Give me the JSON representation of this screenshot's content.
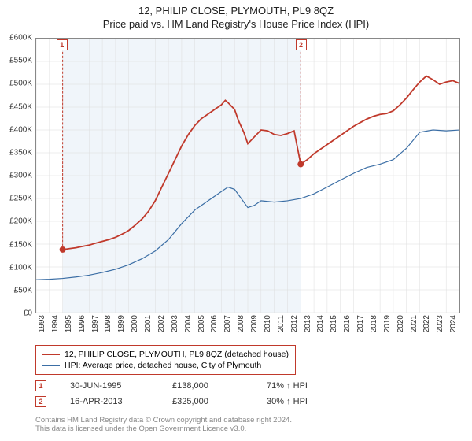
{
  "title": "12, PHILIP CLOSE, PLYMOUTH, PL9 8QZ",
  "subtitle": "Price paid vs. HM Land Registry's House Price Index (HPI)",
  "chart": {
    "type": "line",
    "background_color": "#ffffff",
    "grid_color": "#dddddd",
    "highlight_band_color": "#f0f5fa",
    "border_color": "#888888",
    "ylim": [
      0,
      600000
    ],
    "ytick_step": 50000,
    "ytick_labels": [
      "£0",
      "£50K",
      "£100K",
      "£150K",
      "£200K",
      "£250K",
      "£300K",
      "£350K",
      "£400K",
      "£450K",
      "£500K",
      "£550K",
      "£600K"
    ],
    "xlim": [
      1993,
      2025
    ],
    "xtick_labels": [
      "1993",
      "1994",
      "1995",
      "1996",
      "1997",
      "1998",
      "1999",
      "2000",
      "2001",
      "2002",
      "2003",
      "2004",
      "2005",
      "2006",
      "2007",
      "2008",
      "2009",
      "2010",
      "2011",
      "2012",
      "2013",
      "2014",
      "2015",
      "2016",
      "2017",
      "2018",
      "2019",
      "2020",
      "2021",
      "2022",
      "2023",
      "2024"
    ],
    "highlight_band_x": [
      1995,
      2013
    ],
    "series": [
      {
        "name": "12, PHILIP CLOSE, PLYMOUTH, PL9 8QZ (detached house)",
        "color": "#c0392b",
        "line_width": 1.8,
        "data": [
          [
            1995.0,
            138000
          ],
          [
            1995.5,
            140000
          ],
          [
            1996.0,
            142000
          ],
          [
            1996.5,
            145000
          ],
          [
            1997.0,
            148000
          ],
          [
            1997.5,
            152000
          ],
          [
            1998.0,
            156000
          ],
          [
            1998.5,
            160000
          ],
          [
            1999.0,
            165000
          ],
          [
            1999.5,
            172000
          ],
          [
            2000.0,
            180000
          ],
          [
            2000.5,
            192000
          ],
          [
            2001.0,
            205000
          ],
          [
            2001.5,
            222000
          ],
          [
            2002.0,
            245000
          ],
          [
            2002.5,
            275000
          ],
          [
            2003.0,
            305000
          ],
          [
            2003.5,
            335000
          ],
          [
            2004.0,
            365000
          ],
          [
            2004.5,
            390000
          ],
          [
            2005.0,
            410000
          ],
          [
            2005.5,
            425000
          ],
          [
            2006.0,
            435000
          ],
          [
            2006.5,
            445000
          ],
          [
            2007.0,
            455000
          ],
          [
            2007.3,
            465000
          ],
          [
            2007.5,
            460000
          ],
          [
            2008.0,
            445000
          ],
          [
            2008.3,
            420000
          ],
          [
            2008.7,
            395000
          ],
          [
            2009.0,
            370000
          ],
          [
            2009.5,
            385000
          ],
          [
            2010.0,
            400000
          ],
          [
            2010.5,
            398000
          ],
          [
            2011.0,
            390000
          ],
          [
            2011.5,
            388000
          ],
          [
            2012.0,
            392000
          ],
          [
            2012.5,
            398000
          ],
          [
            2013.0,
            325000
          ],
          [
            2013.5,
            335000
          ],
          [
            2014.0,
            348000
          ],
          [
            2014.5,
            358000
          ],
          [
            2015.0,
            368000
          ],
          [
            2015.5,
            378000
          ],
          [
            2016.0,
            388000
          ],
          [
            2016.5,
            398000
          ],
          [
            2017.0,
            408000
          ],
          [
            2017.5,
            416000
          ],
          [
            2018.0,
            424000
          ],
          [
            2018.5,
            430000
          ],
          [
            2019.0,
            434000
          ],
          [
            2019.5,
            436000
          ],
          [
            2020.0,
            442000
          ],
          [
            2020.5,
            455000
          ],
          [
            2021.0,
            470000
          ],
          [
            2021.5,
            488000
          ],
          [
            2022.0,
            505000
          ],
          [
            2022.5,
            518000
          ],
          [
            2023.0,
            510000
          ],
          [
            2023.5,
            500000
          ],
          [
            2024.0,
            505000
          ],
          [
            2024.5,
            508000
          ],
          [
            2025.0,
            502000
          ]
        ]
      },
      {
        "name": "HPI: Average price, detached house, City of Plymouth",
        "color": "#3b6ea5",
        "line_width": 1.2,
        "data": [
          [
            1993.0,
            72000
          ],
          [
            1994.0,
            73000
          ],
          [
            1995.0,
            75000
          ],
          [
            1996.0,
            78000
          ],
          [
            1997.0,
            82000
          ],
          [
            1998.0,
            88000
          ],
          [
            1999.0,
            95000
          ],
          [
            2000.0,
            105000
          ],
          [
            2001.0,
            118000
          ],
          [
            2002.0,
            135000
          ],
          [
            2003.0,
            160000
          ],
          [
            2004.0,
            195000
          ],
          [
            2005.0,
            225000
          ],
          [
            2006.0,
            245000
          ],
          [
            2007.0,
            265000
          ],
          [
            2007.5,
            275000
          ],
          [
            2008.0,
            270000
          ],
          [
            2008.5,
            250000
          ],
          [
            2009.0,
            230000
          ],
          [
            2009.5,
            235000
          ],
          [
            2010.0,
            245000
          ],
          [
            2011.0,
            242000
          ],
          [
            2012.0,
            245000
          ],
          [
            2013.0,
            250000
          ],
          [
            2014.0,
            260000
          ],
          [
            2015.0,
            275000
          ],
          [
            2016.0,
            290000
          ],
          [
            2017.0,
            305000
          ],
          [
            2018.0,
            318000
          ],
          [
            2019.0,
            325000
          ],
          [
            2020.0,
            335000
          ],
          [
            2021.0,
            360000
          ],
          [
            2022.0,
            395000
          ],
          [
            2023.0,
            400000
          ],
          [
            2024.0,
            398000
          ],
          [
            2025.0,
            400000
          ]
        ]
      }
    ],
    "markers": [
      {
        "id": "1",
        "x": 1995.0,
        "y": 138000,
        "color": "#c0392b",
        "label_y_top": 50
      },
      {
        "id": "2",
        "x": 2013.0,
        "y": 325000,
        "color": "#c0392b",
        "label_y_top": 50
      }
    ]
  },
  "legend": {
    "border_color": "#c0392b",
    "items": [
      {
        "label": "12, PHILIP CLOSE, PLYMOUTH, PL9 8QZ (detached house)",
        "color": "#c0392b"
      },
      {
        "label": "HPI: Average price, detached house, City of Plymouth",
        "color": "#3b6ea5"
      }
    ]
  },
  "transactions": [
    {
      "id": "1",
      "date": "30-JUN-1995",
      "price": "£138,000",
      "pct": "71% ↑ HPI"
    },
    {
      "id": "2",
      "date": "16-APR-2013",
      "price": "£325,000",
      "pct": "30% ↑ HPI"
    }
  ],
  "attribution": {
    "line1": "Contains HM Land Registry data © Crown copyright and database right 2024.",
    "line2": "This data is licensed under the Open Government Licence v3.0."
  }
}
